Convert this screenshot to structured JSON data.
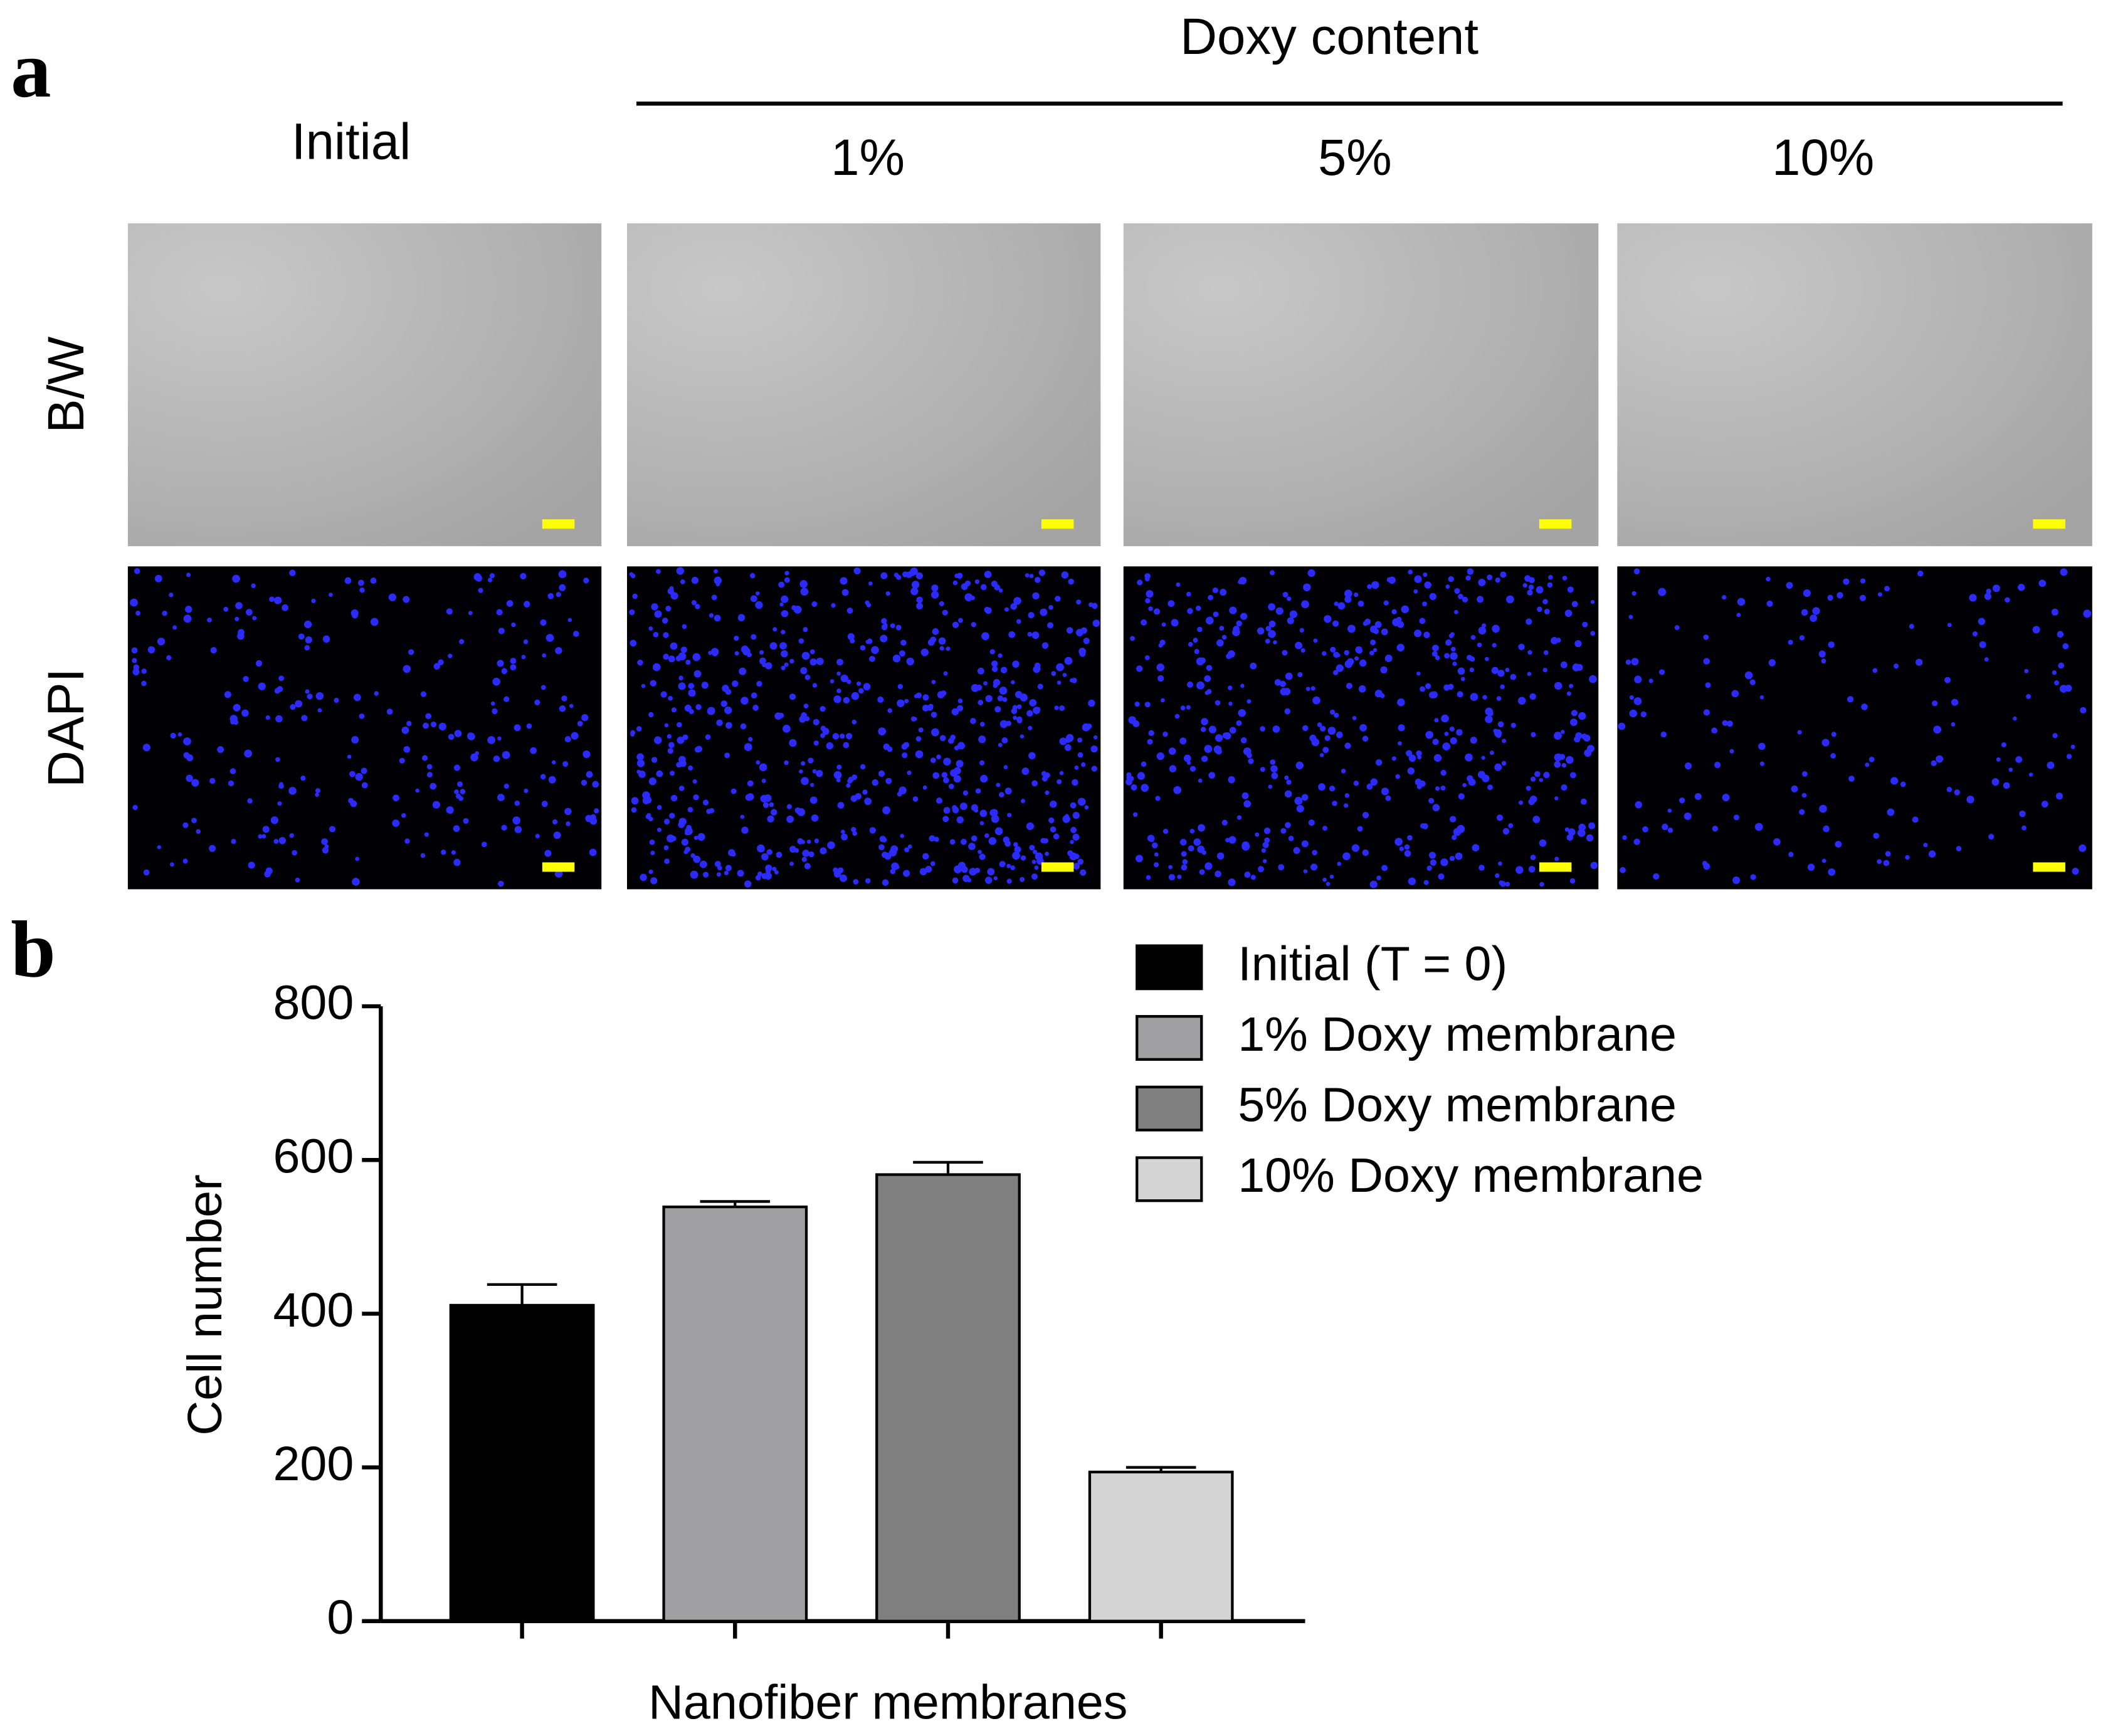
{
  "panel_a": {
    "label": "a",
    "header": "Doxy content",
    "columns": [
      "Initial",
      "1%",
      "5%",
      "10%"
    ],
    "rows": [
      "B/W",
      "DAPI"
    ]
  },
  "chart_data": {
    "type": "bar",
    "panel_label": "b",
    "ylabel": "Cell number",
    "xlabel": "Nanofiber membranes",
    "categories": [
      null,
      null,
      null,
      null
    ],
    "series": [
      {
        "name": "Initial (T = 0)",
        "color": "#000000",
        "values": [
          411,
          null,
          null,
          null
        ],
        "errors": [
          27,
          null,
          null,
          null
        ]
      },
      {
        "name": "1% Doxy membrane",
        "color": "#a0a0a4",
        "values": [
          null,
          539,
          null,
          null
        ],
        "errors": [
          null,
          7,
          null,
          null
        ]
      },
      {
        "name": "5% Doxy membrane",
        "color": "#808080",
        "values": [
          null,
          null,
          581,
          null
        ],
        "errors": [
          null,
          null,
          16,
          null
        ]
      },
      {
        "name": "10% Doxy membrane",
        "color": "#d4d4d4",
        "values": [
          null,
          null,
          null,
          194
        ],
        "errors": [
          null,
          null,
          null,
          6
        ]
      }
    ],
    "ylim": [
      0,
      800
    ],
    "yticks": [
      0,
      200,
      400,
      600,
      800
    ]
  }
}
